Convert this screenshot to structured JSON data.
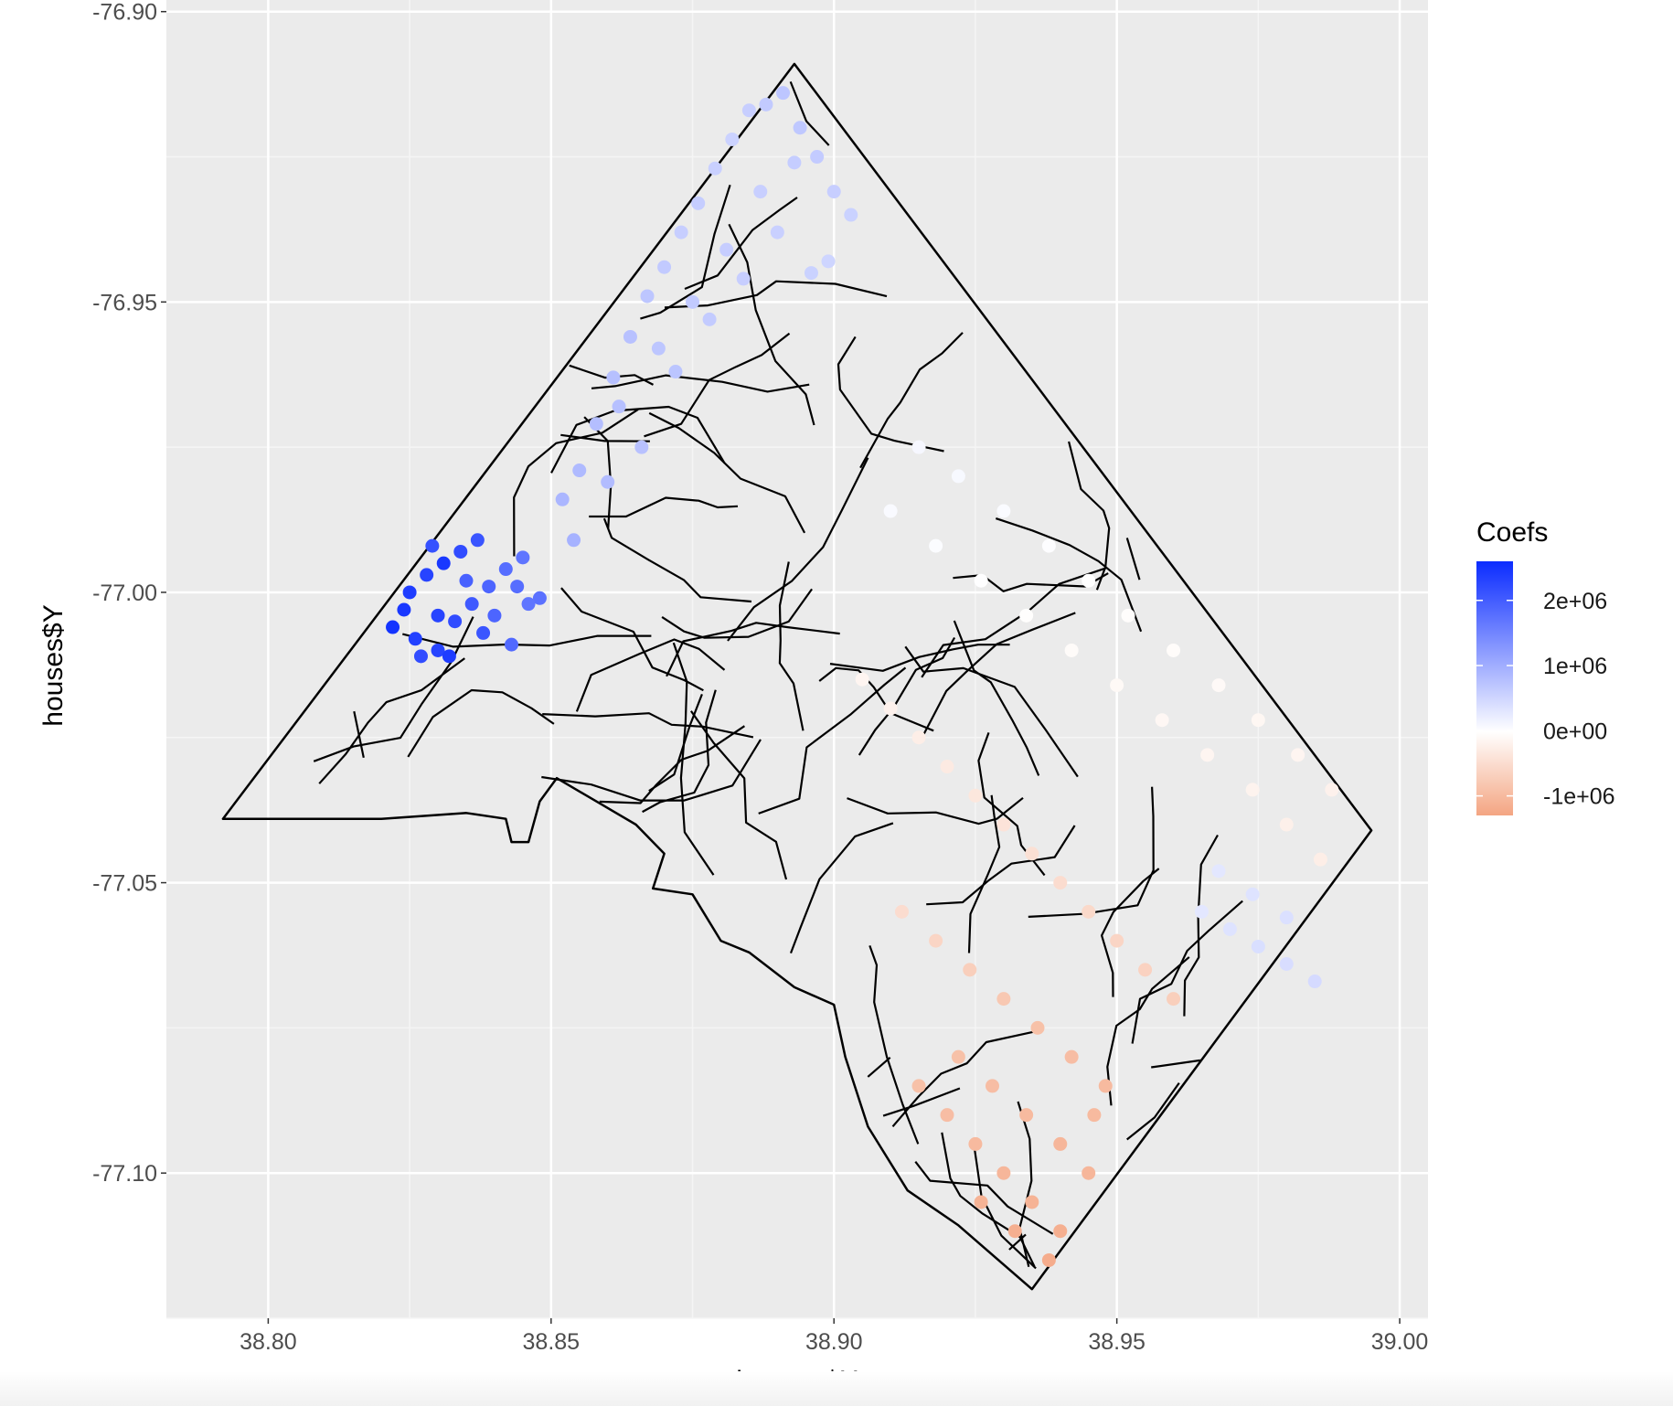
{
  "chart_data": {
    "type": "scatter",
    "xlabel": "houses$X",
    "ylabel": "houses$Y",
    "xlim": [
      38.782,
      39.005
    ],
    "ylim": [
      -77.125,
      -76.898
    ],
    "x_ticks": [
      38.8,
      38.85,
      38.9,
      38.95,
      39.0
    ],
    "x_tick_labels": [
      "38.80",
      "38.85",
      "38.90",
      "38.95",
      "39.00"
    ],
    "y_ticks": [
      -76.9,
      -76.95,
      -77.0,
      -77.05,
      -77.1
    ],
    "y_tick_labels": [
      "-76.90",
      "-76.95",
      "-77.00",
      "-77.05",
      "-77.10"
    ],
    "grid": true,
    "legend": {
      "title": "Coefs",
      "position": "right",
      "labels": [
        "2e+06",
        "1e+06",
        "0e+00",
        "-1e+06"
      ],
      "breaks": [
        2000000,
        1000000,
        0,
        -1000000
      ],
      "range": [
        -1300000,
        2600000
      ],
      "low_color": "#f4a582",
      "mid_color": "#ffffff",
      "high_color": "#0b2cff"
    },
    "boundary": [
      [
        38.792,
        -77.039
      ],
      [
        38.82,
        -77.039
      ],
      [
        38.835,
        -77.038
      ],
      [
        38.842,
        -77.039
      ],
      [
        38.843,
        -77.043
      ],
      [
        38.846,
        -77.043
      ],
      [
        38.848,
        -77.036
      ],
      [
        38.851,
        -77.032
      ],
      [
        38.858,
        -77.036
      ],
      [
        38.865,
        -77.04
      ],
      [
        38.87,
        -77.045
      ],
      [
        38.868,
        -77.051
      ],
      [
        38.875,
        -77.052
      ],
      [
        38.88,
        -77.06
      ],
      [
        38.885,
        -77.062
      ],
      [
        38.893,
        -77.068
      ],
      [
        38.9,
        -77.071
      ],
      [
        38.902,
        -77.08
      ],
      [
        38.906,
        -77.092
      ],
      [
        38.913,
        -77.103
      ],
      [
        38.922,
        -77.109
      ],
      [
        38.935,
        -77.12
      ],
      [
        38.995,
        -77.041
      ],
      [
        38.893,
        -76.909
      ],
      [
        38.792,
        -77.039
      ]
    ],
    "series": [
      {
        "x": [
          38.825,
          38.828,
          38.831,
          38.834,
          38.837,
          38.822,
          38.826,
          38.83,
          38.833,
          38.836,
          38.839,
          38.842,
          38.845,
          38.848,
          38.824,
          38.827,
          38.83,
          38.835,
          38.838,
          38.843,
          38.846,
          38.829,
          38.832,
          38.84,
          38.844
        ],
        "y": [
          -77.0,
          -76.997,
          -76.995,
          -76.993,
          -76.991,
          -77.006,
          -77.008,
          -77.01,
          -77.005,
          -77.002,
          -76.999,
          -76.996,
          -76.994,
          -77.001,
          -77.003,
          -77.011,
          -77.004,
          -76.998,
          -77.007,
          -77.009,
          -77.002,
          -76.992,
          -77.011,
          -77.004,
          -76.999
        ],
        "coef": [
          2400000,
          2300000,
          2450000,
          2200000,
          2100000,
          2500000,
          2350000,
          2300000,
          2200000,
          2050000,
          1900000,
          1800000,
          1700000,
          1750000,
          2450000,
          2200000,
          2300000,
          1950000,
          2100000,
          1850000,
          1700000,
          2150000,
          2400000,
          1900000,
          1800000
        ]
      },
      {
        "x": [
          38.852,
          38.855,
          38.858,
          38.861,
          38.864,
          38.867,
          38.87,
          38.873,
          38.876,
          38.879,
          38.882,
          38.885,
          38.888,
          38.891,
          38.894,
          38.897,
          38.9,
          38.903,
          38.86,
          38.866,
          38.872,
          38.878,
          38.884,
          38.89,
          38.896,
          38.854,
          38.862,
          38.869,
          38.875,
          38.881,
          38.887,
          38.893,
          38.899
        ],
        "y": [
          -76.984,
          -76.979,
          -76.971,
          -76.963,
          -76.956,
          -76.949,
          -76.944,
          -76.938,
          -76.933,
          -76.927,
          -76.922,
          -76.917,
          -76.916,
          -76.914,
          -76.92,
          -76.925,
          -76.931,
          -76.935,
          -76.981,
          -76.975,
          -76.962,
          -76.953,
          -76.946,
          -76.938,
          -76.945,
          -76.991,
          -76.968,
          -76.958,
          -76.95,
          -76.941,
          -76.931,
          -76.926,
          -76.943
        ],
        "coef": [
          900000,
          850000,
          800000,
          780000,
          760000,
          700000,
          650000,
          600000,
          620000,
          580000,
          550000,
          600000,
          650000,
          700000,
          680000,
          640000,
          600000,
          560000,
          820000,
          760000,
          720000,
          640000,
          600000,
          580000,
          560000,
          950000,
          780000,
          700000,
          650000,
          610000,
          590000,
          620000,
          520000
        ]
      },
      {
        "x": [
          38.915,
          38.922,
          38.93,
          38.938,
          38.945,
          38.952,
          38.96,
          38.968,
          38.975,
          38.982,
          38.988,
          38.91,
          38.918,
          38.926,
          38.934,
          38.942,
          38.95,
          38.958,
          38.966,
          38.974,
          38.98,
          38.986
        ],
        "y": [
          -76.975,
          -76.98,
          -76.986,
          -76.992,
          -76.998,
          -77.004,
          -77.01,
          -77.016,
          -77.022,
          -77.028,
          -77.034,
          -76.986,
          -76.992,
          -76.998,
          -77.004,
          -77.01,
          -77.016,
          -77.022,
          -77.028,
          -77.034,
          -77.04,
          -77.046
        ],
        "coef": [
          100000,
          80000,
          50000,
          20000,
          0,
          -30000,
          -50000,
          -80000,
          -120000,
          -150000,
          -200000,
          60000,
          40000,
          10000,
          -20000,
          -60000,
          -90000,
          -110000,
          -150000,
          -180000,
          -220000,
          -250000
        ]
      },
      {
        "x": [
          38.905,
          38.91,
          38.915,
          38.92,
          38.925,
          38.93,
          38.935,
          38.94,
          38.945,
          38.95,
          38.955,
          38.96,
          38.912,
          38.918,
          38.924,
          38.93,
          38.936,
          38.942,
          38.948
        ],
        "y": [
          -77.015,
          -77.02,
          -77.025,
          -77.03,
          -77.035,
          -77.04,
          -77.045,
          -77.05,
          -77.055,
          -77.06,
          -77.065,
          -77.07,
          -77.055,
          -77.06,
          -77.065,
          -77.07,
          -77.075,
          -77.08,
          -77.085
        ],
        "coef": [
          -150000,
          -200000,
          -250000,
          -300000,
          -350000,
          -400000,
          -450000,
          -500000,
          -550000,
          -600000,
          -650000,
          -700000,
          -500000,
          -600000,
          -700000,
          -800000,
          -900000,
          -950000,
          -1000000
        ]
      },
      {
        "x": [
          38.915,
          38.92,
          38.925,
          38.93,
          38.935,
          38.94,
          38.945,
          38.922,
          38.928,
          38.934,
          38.94,
          38.946,
          38.926,
          38.932,
          38.938
        ],
        "y": [
          -77.085,
          -77.09,
          -77.095,
          -77.1,
          -77.105,
          -77.11,
          -77.1,
          -77.08,
          -77.085,
          -77.09,
          -77.095,
          -77.09,
          -77.105,
          -77.11,
          -77.115
        ],
        "coef": [
          -900000,
          -950000,
          -1000000,
          -1050000,
          -1100000,
          -1150000,
          -1050000,
          -900000,
          -950000,
          -1000000,
          -1050000,
          -1000000,
          -1100000,
          -1150000,
          -1200000
        ]
      },
      {
        "x": [
          38.965,
          38.97,
          38.975,
          38.98,
          38.985,
          38.968,
          38.974,
          38.98
        ],
        "y": [
          -77.055,
          -77.058,
          -77.061,
          -77.064,
          -77.067,
          -77.048,
          -77.052,
          -77.056
        ],
        "coef": [
          300000,
          350000,
          400000,
          420000,
          450000,
          300000,
          350000,
          380000
        ]
      }
    ]
  }
}
